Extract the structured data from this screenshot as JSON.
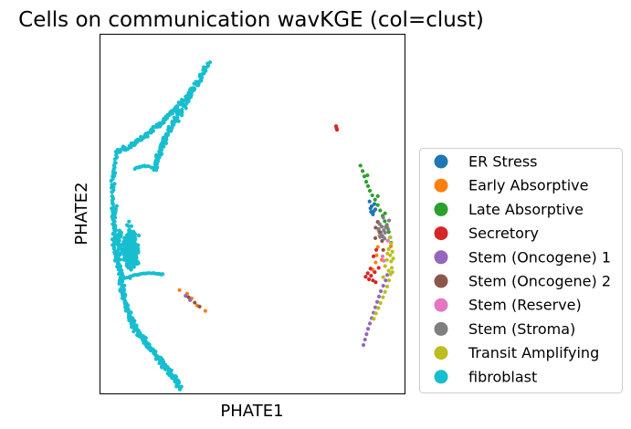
{
  "chart_data": {
    "type": "scatter",
    "title": "Cells on communication wavKGE (col=clust)",
    "xlabel": "PHATE1",
    "ylabel": "PHATE2",
    "xticks": false,
    "yticks": false,
    "grid": false,
    "legend_position": "right",
    "xlim": [
      0,
      100
    ],
    "ylim": [
      0,
      100
    ],
    "series": [
      {
        "name": "ER Stress",
        "color": "#1f77b4",
        "points": [
          [
            88.5,
            53.5
          ],
          [
            89.2,
            52.2
          ],
          [
            89.9,
            50.8
          ],
          [
            90.1,
            52.8
          ],
          [
            88.8,
            51.6
          ],
          [
            89.6,
            49.9
          ],
          [
            90.4,
            51.3
          ],
          [
            89.0,
            50.6
          ]
        ]
      },
      {
        "name": "Early Absorptive",
        "color": "#ff7f0e",
        "points": [
          [
            91.5,
            45.5
          ],
          [
            90.8,
            38.5
          ],
          [
            91.2,
            40.8
          ],
          [
            90.5,
            36.5
          ],
          [
            95.5,
            41.0
          ],
          [
            30.0,
            26.5
          ],
          [
            31.8,
            24.5
          ],
          [
            34.5,
            23.0
          ],
          [
            28.5,
            27.8
          ],
          [
            26.0,
            28.8
          ],
          [
            89.5,
            34.5
          ],
          [
            91.8,
            44.0
          ],
          [
            92.5,
            37.2
          ]
        ]
      },
      {
        "name": "Late Absorptive",
        "color": "#2ca02c",
        "points": [
          [
            85.5,
            63.5
          ],
          [
            86.2,
            62.0
          ],
          [
            86.8,
            60.5
          ],
          [
            87.4,
            59.0
          ],
          [
            88.0,
            57.8
          ],
          [
            88.6,
            56.5
          ],
          [
            89.4,
            55.2
          ],
          [
            90.3,
            54.0
          ],
          [
            91.2,
            52.5
          ],
          [
            92.0,
            51.0
          ],
          [
            92.8,
            49.5
          ],
          [
            93.5,
            48.0
          ],
          [
            94.2,
            46.5
          ],
          [
            94.8,
            45.0
          ],
          [
            95.3,
            43.5
          ],
          [
            95.6,
            42.0
          ],
          [
            91.2,
            55.0
          ],
          [
            87.8,
            60.8
          ],
          [
            93.6,
            50.2
          ]
        ]
      },
      {
        "name": "Secretory",
        "color": "#d62728",
        "points": [
          [
            77.5,
            74.5
          ],
          [
            77.8,
            73.5
          ],
          [
            77.6,
            74.0
          ],
          [
            89.0,
            32.8
          ],
          [
            87.9,
            33.5
          ],
          [
            88.3,
            31.8
          ],
          [
            87.2,
            32.5
          ],
          [
            89.6,
            31.5
          ],
          [
            90.5,
            31.0
          ],
          [
            88.8,
            34.8
          ],
          [
            90.2,
            33.8
          ],
          [
            91.5,
            35.0
          ],
          [
            90.7,
            40.0
          ],
          [
            89.8,
            38.2
          ]
        ]
      },
      {
        "name": "Stem (Oncogene) 1",
        "color": "#9467bd",
        "points": [
          [
            86.5,
            13.5
          ],
          [
            87.0,
            15.0
          ],
          [
            87.5,
            16.5
          ],
          [
            88.0,
            18.0
          ],
          [
            88.6,
            19.5
          ],
          [
            89.2,
            21.0
          ],
          [
            89.8,
            22.5
          ],
          [
            90.4,
            24.0
          ],
          [
            91.0,
            25.5
          ],
          [
            91.6,
            27.0
          ],
          [
            92.2,
            28.5
          ],
          [
            93.0,
            30.0
          ],
          [
            93.8,
            31.5
          ],
          [
            94.3,
            33.0
          ],
          [
            28.0,
            27.2
          ],
          [
            29.5,
            26.0
          ],
          [
            92.8,
            43.8
          ],
          [
            92.2,
            44.8
          ]
        ]
      },
      {
        "name": "Stem (Oncogene) 2",
        "color": "#8c564b",
        "points": [
          [
            90.5,
            46.2
          ],
          [
            91.2,
            47.8
          ],
          [
            91.8,
            45.0
          ],
          [
            92.6,
            42.5
          ],
          [
            93.0,
            40.0
          ],
          [
            29.0,
            26.8
          ],
          [
            31.0,
            25.3
          ],
          [
            32.6,
            24.2
          ],
          [
            90.4,
            43.3
          ]
        ]
      },
      {
        "name": "Stem (Reserve)",
        "color": "#e377c2",
        "points": [
          [
            93.2,
            37.0
          ],
          [
            92.8,
            38.2
          ],
          [
            94.5,
            42.6
          ]
        ]
      },
      {
        "name": "Stem (Stroma)",
        "color": "#7f7f7f",
        "points": [
          [
            92.5,
            46.5
          ],
          [
            93.2,
            45.5
          ],
          [
            91.8,
            47.2
          ],
          [
            92.3,
            44.2
          ],
          [
            93.6,
            44.8
          ],
          [
            94.2,
            47.0
          ],
          [
            93.0,
            49.0
          ],
          [
            92.0,
            43.6
          ],
          [
            94.6,
            45.8
          ],
          [
            93.4,
            43.2
          ],
          [
            94.9,
            48.2
          ],
          [
            91.5,
            45.8
          ],
          [
            93.8,
            46.4
          ]
        ]
      },
      {
        "name": "Transit Amplifying",
        "color": "#bcbd22",
        "points": [
          [
            94.8,
            40.2
          ],
          [
            95.3,
            38.5
          ],
          [
            95.6,
            36.8
          ],
          [
            95.8,
            35.0
          ],
          [
            95.4,
            33.2
          ],
          [
            94.9,
            31.5
          ],
          [
            94.3,
            29.8
          ],
          [
            93.6,
            28.3
          ],
          [
            92.9,
            26.8
          ],
          [
            92.1,
            25.2
          ],
          [
            91.4,
            23.8
          ],
          [
            90.6,
            22.3
          ],
          [
            89.9,
            20.8
          ],
          [
            95.6,
            41.8
          ],
          [
            96.0,
            39.5
          ],
          [
            94.2,
            37.2
          ],
          [
            93.6,
            35.5
          ],
          [
            94.8,
            34.2
          ],
          [
            95.2,
            43.5
          ],
          [
            96.3,
            37.6
          ],
          [
            93.0,
            32.4
          ],
          [
            96.0,
            33.8
          ],
          [
            94.4,
            39.0
          ]
        ]
      },
      {
        "name": "fibroblast",
        "color": "#17becf",
        "curves": [
          {
            "from": [
              35.5,
              92.0
            ],
            "c1": [
              28.0,
              80.0
            ],
            "c2": [
              20.0,
              72.0
            ],
            "to": [
              18.0,
              62.5
            ],
            "n": 150,
            "jitter": 1.4
          },
          {
            "from": [
              30.5,
              85.0
            ],
            "c1": [
              24.0,
              78.0
            ],
            "c2": [
              14.0,
              70.0
            ],
            "to": [
              5.5,
              67.5
            ],
            "n": 120,
            "jitter": 1.3
          },
          {
            "from": [
              5.5,
              67.5
            ],
            "c1": [
              3.0,
              58.0
            ],
            "c2": [
              3.0,
              48.0
            ],
            "to": [
              7.0,
              40.0
            ],
            "n": 60,
            "jitter": 1.0
          },
          {
            "from": [
              6.0,
              45.0
            ],
            "c1": [
              5.0,
              36.0
            ],
            "c2": [
              7.0,
              25.0
            ],
            "to": [
              12.0,
              18.0
            ],
            "n": 120,
            "jitter": 1.8
          },
          {
            "from": [
              10.0,
              20.0
            ],
            "c1": [
              16.0,
              12.0
            ],
            "c2": [
              22.0,
              8.0
            ],
            "to": [
              26.5,
              1.5
            ],
            "n": 150,
            "jitter": 1.5
          },
          {
            "from": [
              8.0,
              32.0
            ],
            "c1": [
              12.0,
              33.5
            ],
            "c2": [
              17.0,
              34.0
            ],
            "to": [
              20.5,
              33.0
            ],
            "n": 20,
            "jitter": 0.4
          },
          {
            "from": [
              18.0,
              62.5
            ],
            "c1": [
              15.0,
              63.5
            ],
            "c2": [
              13.0,
              63.8
            ],
            "to": [
              11.5,
              62.5
            ],
            "n": 12,
            "jitter": 0.5
          },
          {
            "from": [
              5.0,
              52.0
            ],
            "c1": [
              4.0,
              42.0
            ],
            "c2": [
              4.5,
              38.0
            ],
            "to": [
              7.5,
              32.0
            ],
            "n": 40,
            "jitter": 0.9
          }
        ],
        "cluster": {
          "center": [
            10.0,
            40.0
          ],
          "rx": 4.5,
          "ry": 11.0,
          "n": 400
        }
      }
    ]
  }
}
